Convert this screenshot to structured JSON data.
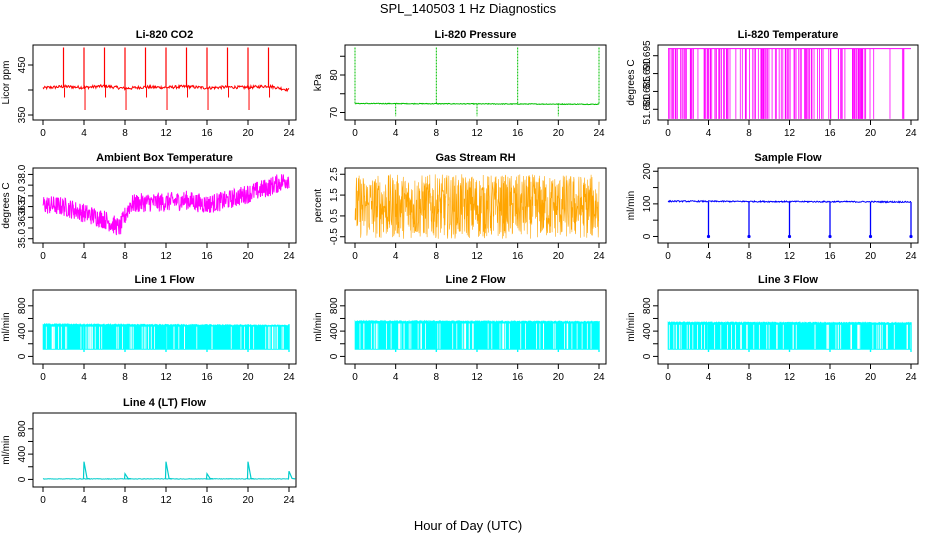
{
  "figure_title": "SPL_140503  1 Hz Diagnostics",
  "x_axis_title": "Hour of Day (UTC)",
  "chart_data": [
    {
      "type": "line",
      "title": "Li-820 CO2",
      "ylabel": "Licor ppm",
      "color": "#ff0000",
      "x_ticks": [
        0,
        4,
        8,
        12,
        16,
        20,
        24
      ],
      "ylim": [
        340,
        490
      ],
      "y_ticks": [
        {
          "value": 350,
          "label": "350"
        },
        {
          "value": 400,
          "label": ""
        },
        {
          "value": 450,
          "label": "450"
        }
      ],
      "x": [
        0,
        2,
        4,
        6,
        8,
        10,
        12,
        14,
        16,
        18,
        20,
        22,
        24
      ],
      "y": [
        404,
        407,
        405,
        408,
        403,
        406,
        405,
        407,
        404,
        406,
        405,
        408,
        400
      ],
      "spikes": [
        2,
        4,
        6,
        8,
        10,
        12,
        14,
        16,
        18,
        20,
        22
      ]
    },
    {
      "type": "line",
      "title": "Li-820 Pressure",
      "ylabel": "kPa",
      "color": "#00c000",
      "x_ticks": [
        0,
        4,
        8,
        12,
        16,
        20,
        24
      ],
      "ylim": [
        68,
        88
      ],
      "y_ticks": [
        {
          "value": 70,
          "label": "70"
        },
        {
          "value": 75,
          "label": ""
        },
        {
          "value": 80,
          "label": "80"
        },
        {
          "value": 85,
          "label": ""
        }
      ],
      "x": [
        0,
        24
      ],
      "y": [
        72.4,
        72.2
      ],
      "spikes": [
        0,
        4,
        8,
        12,
        16,
        20,
        24
      ]
    },
    {
      "type": "line",
      "title": "Li-820 Temperature",
      "ylabel": "degrees C",
      "color": "#ff00ff",
      "x_ticks": [
        0,
        4,
        8,
        12,
        16,
        20,
        24
      ],
      "ylim": [
        51.677,
        51.698
      ],
      "y_ticks": [
        {
          "value": 51.68,
          "label": "51.680"
        },
        {
          "value": 51.685,
          "label": "51.685"
        },
        {
          "value": 51.69,
          "label": "51.690"
        },
        {
          "value": 51.695,
          "label": "51.695"
        }
      ],
      "x": [
        0,
        24
      ],
      "y": [
        51.697,
        51.677
      ]
    },
    {
      "type": "line",
      "title": "Ambient Box Temperature",
      "ylabel": "degrees C",
      "color": "#ff00ff",
      "x_ticks": [
        0,
        4,
        8,
        12,
        16,
        20,
        24
      ],
      "ylim": [
        34.8,
        38.3
      ],
      "y_ticks": [
        {
          "value": 35.0,
          "label": "35.0"
        },
        {
          "value": 35.5,
          "label": ""
        },
        {
          "value": 36.0,
          "label": "36.0"
        },
        {
          "value": 36.5,
          "label": "36.5"
        },
        {
          "value": 37.0,
          "label": "37.0"
        },
        {
          "value": 37.5,
          "label": ""
        },
        {
          "value": 38.0,
          "label": "38.0"
        }
      ],
      "x": [
        0,
        2,
        4,
        6,
        7.5,
        8.5,
        10,
        12,
        14,
        16,
        18,
        20,
        22,
        24
      ],
      "y": [
        36.6,
        36.5,
        36.2,
        35.9,
        35.5,
        36.6,
        36.7,
        36.7,
        36.8,
        36.6,
        36.8,
        37.1,
        37.4,
        37.8
      ]
    },
    {
      "type": "line",
      "title": "Gas Stream RH",
      "ylabel": "percent",
      "color": "#ffa500",
      "x_ticks": [
        0,
        4,
        8,
        12,
        16,
        20,
        24
      ],
      "ylim": [
        -0.8,
        2.8
      ],
      "y_ticks": [
        {
          "value": -0.5,
          "label": "-0.5"
        },
        {
          "value": 0.5,
          "label": "0.5"
        },
        {
          "value": 1.5,
          "label": "1.5"
        },
        {
          "value": 2.5,
          "label": "2.5"
        }
      ],
      "x": [
        0,
        24
      ],
      "y": [
        1.0,
        1.0
      ],
      "band": [
        -0.6,
        2.5
      ]
    },
    {
      "type": "line",
      "title": "Sample Flow",
      "ylabel": "ml/min",
      "color": "#0000ff",
      "x_ticks": [
        0,
        4,
        8,
        12,
        16,
        20,
        24
      ],
      "ylim": [
        -20,
        210
      ],
      "y_ticks": [
        {
          "value": 0,
          "label": "0"
        },
        {
          "value": 50,
          "label": ""
        },
        {
          "value": 100,
          "label": "100"
        },
        {
          "value": 150,
          "label": ""
        },
        {
          "value": 200,
          "label": "200"
        }
      ],
      "x": [
        0,
        24
      ],
      "y": [
        108,
        106
      ],
      "spikes": [
        4,
        8,
        12,
        16,
        20,
        24
      ]
    },
    {
      "type": "area",
      "title": "Line 1 Flow",
      "ylabel": "ml/min",
      "color": "#00ffff",
      "x_ticks": [
        0,
        4,
        8,
        12,
        16,
        20,
        24
      ],
      "ylim": [
        -120,
        1050
      ],
      "y_ticks": [
        {
          "value": 0,
          "label": "0"
        },
        {
          "value": 200,
          "label": ""
        },
        {
          "value": 400,
          "label": "400"
        },
        {
          "value": 600,
          "label": ""
        },
        {
          "value": 800,
          "label": "800"
        }
      ],
      "x": [
        0,
        24
      ],
      "upper": [
        510,
        490
      ],
      "lower": [
        110,
        110
      ],
      "spikes": [
        4,
        8,
        12,
        16,
        20,
        24
      ]
    },
    {
      "type": "area",
      "title": "Line 2 Flow",
      "ylabel": "ml/min",
      "color": "#00ffff",
      "x_ticks": [
        0,
        4,
        8,
        12,
        16,
        20,
        24
      ],
      "ylim": [
        -120,
        1050
      ],
      "y_ticks": [
        {
          "value": 0,
          "label": "0"
        },
        {
          "value": 200,
          "label": ""
        },
        {
          "value": 400,
          "label": "400"
        },
        {
          "value": 600,
          "label": ""
        },
        {
          "value": 800,
          "label": "800"
        }
      ],
      "x": [
        0,
        24
      ],
      "upper": [
        560,
        550
      ],
      "lower": [
        110,
        110
      ],
      "spikes": [
        4,
        8,
        12,
        16,
        20,
        24
      ]
    },
    {
      "type": "area",
      "title": "Line 3 Flow",
      "ylabel": "ml/min",
      "color": "#00ffff",
      "x_ticks": [
        0,
        4,
        8,
        12,
        16,
        20,
        24
      ],
      "ylim": [
        -120,
        1050
      ],
      "y_ticks": [
        {
          "value": 0,
          "label": "0"
        },
        {
          "value": 200,
          "label": ""
        },
        {
          "value": 400,
          "label": "400"
        },
        {
          "value": 600,
          "label": ""
        },
        {
          "value": 800,
          "label": "800"
        }
      ],
      "x": [
        0,
        24
      ],
      "upper": [
        540,
        530
      ],
      "lower": [
        110,
        110
      ],
      "spikes": [
        4,
        8,
        12,
        16,
        20,
        24
      ]
    },
    {
      "type": "line",
      "title": "Line 4 (LT) Flow",
      "ylabel": "ml/min",
      "color": "#00cccc",
      "x_ticks": [
        0,
        4,
        8,
        12,
        16,
        20,
        24
      ],
      "ylim": [
        -120,
        1050
      ],
      "y_ticks": [
        {
          "value": 0,
          "label": "0"
        },
        {
          "value": 200,
          "label": ""
        },
        {
          "value": 400,
          "label": "400"
        },
        {
          "value": 600,
          "label": ""
        },
        {
          "value": 800,
          "label": "800"
        }
      ],
      "x": [
        0,
        24
      ],
      "y": [
        8,
        8
      ],
      "peaks": [
        {
          "x": 4,
          "y": 280
        },
        {
          "x": 8,
          "y": 90
        },
        {
          "x": 12,
          "y": 280
        },
        {
          "x": 16,
          "y": 90
        },
        {
          "x": 20,
          "y": 280
        },
        {
          "x": 24,
          "y": 130
        }
      ]
    }
  ]
}
